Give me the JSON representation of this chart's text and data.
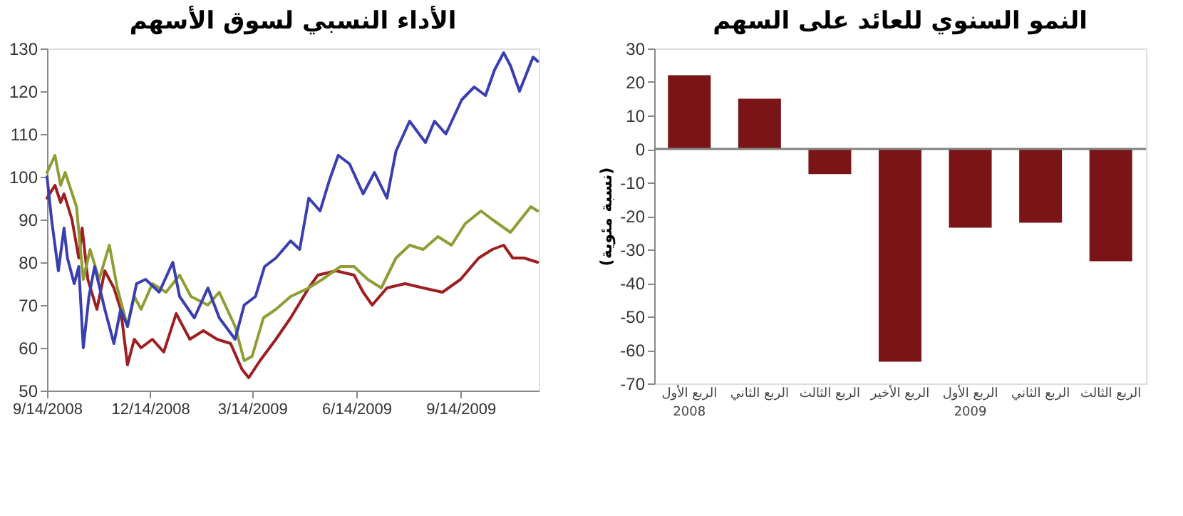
{
  "chart_data": [
    {
      "type": "line",
      "title": "الأداء النسبي لسوق الأسهم",
      "xlim": [
        "2008-09-14",
        "2009-11-22"
      ],
      "xticks": [
        {
          "value": "2008-09-14",
          "label": "9/14/2008"
        },
        {
          "value": "2008-12-14",
          "label": "12/14/2008"
        },
        {
          "value": "2009-03-14",
          "label": "3/14/2009"
        },
        {
          "value": "2009-06-14",
          "label": "6/14/2009"
        },
        {
          "value": "2009-09-14",
          "label": "9/14/2009"
        }
      ],
      "ylim": [
        50,
        130
      ],
      "yticks": [
        50,
        60,
        70,
        80,
        90,
        100,
        110,
        120,
        130
      ],
      "grid": false,
      "legend": false,
      "line_style": "solid",
      "marker": "none",
      "series": [
        {
          "color": "#9e1f22",
          "x": [
            "2008-09-14",
            "2008-09-21",
            "2008-09-26",
            "2008-09-29",
            "2008-10-06",
            "2008-10-12",
            "2008-10-15",
            "2008-10-20",
            "2008-10-28",
            "2008-11-04",
            "2008-11-12",
            "2008-11-18",
            "2008-11-24",
            "2008-11-30",
            "2008-12-06",
            "2008-12-16",
            "2008-12-26",
            "2009-01-06",
            "2009-01-18",
            "2009-01-30",
            "2009-02-11",
            "2009-02-23",
            "2009-03-05",
            "2009-03-11",
            "2009-03-21",
            "2009-04-04",
            "2009-04-17",
            "2009-05-03",
            "2009-05-11",
            "2009-05-27",
            "2009-06-12",
            "2009-06-20",
            "2009-06-28",
            "2009-07-11",
            "2009-07-27",
            "2009-08-12",
            "2009-08-29",
            "2009-09-14",
            "2009-09-30",
            "2009-10-12",
            "2009-10-22",
            "2009-10-30",
            "2009-11-09",
            "2009-11-21"
          ],
          "values": [
            95,
            98,
            94,
            96,
            90,
            81,
            88,
            76,
            69,
            78,
            74,
            69,
            56,
            62,
            60,
            62,
            59,
            68,
            62,
            64,
            62,
            61,
            55,
            53,
            57,
            62,
            67,
            74,
            77,
            78,
            77,
            73,
            70,
            74,
            75,
            74,
            73,
            76,
            81,
            83,
            84,
            81,
            81,
            80
          ]
        },
        {
          "color": "#8f9d35",
          "x": [
            "2008-09-14",
            "2008-09-21",
            "2008-09-26",
            "2008-09-30",
            "2008-10-10",
            "2008-10-16",
            "2008-10-22",
            "2008-10-30",
            "2008-11-08",
            "2008-11-15",
            "2008-11-24",
            "2008-11-30",
            "2008-12-06",
            "2008-12-16",
            "2008-12-28",
            "2009-01-09",
            "2009-01-19",
            "2009-02-03",
            "2009-02-13",
            "2009-02-27",
            "2009-03-07",
            "2009-03-14",
            "2009-03-24",
            "2009-04-04",
            "2009-04-17",
            "2009-05-03",
            "2009-05-15",
            "2009-05-31",
            "2009-06-12",
            "2009-06-24",
            "2009-07-06",
            "2009-07-19",
            "2009-07-31",
            "2009-08-12",
            "2009-08-25",
            "2009-09-06",
            "2009-09-18",
            "2009-10-02",
            "2009-10-12",
            "2009-10-28",
            "2009-11-09",
            "2009-11-15",
            "2009-11-21"
          ],
          "values": [
            101,
            105,
            98,
            101,
            93,
            76,
            83,
            76,
            84,
            74,
            65,
            72,
            69,
            75,
            73,
            77,
            72,
            70,
            73,
            65,
            57,
            58,
            67,
            69,
            72,
            74,
            76,
            79,
            79,
            76,
            74,
            81,
            84,
            83,
            86,
            84,
            89,
            92,
            90,
            87,
            91,
            93,
            92
          ]
        },
        {
          "color": "#3a3fb0",
          "x": [
            "2008-09-14",
            "2008-09-18",
            "2008-09-23",
            "2008-09-24",
            "2008-09-29",
            "2008-10-02",
            "2008-10-08",
            "2008-10-12",
            "2008-10-16",
            "2008-10-21",
            "2008-10-26",
            "2008-11-04",
            "2008-11-12",
            "2008-11-18",
            "2008-11-24",
            "2008-12-02",
            "2008-12-10",
            "2008-12-22",
            "2009-01-03",
            "2009-01-09",
            "2009-01-22",
            "2009-02-03",
            "2009-02-13",
            "2009-02-27",
            "2009-03-07",
            "2009-03-17",
            "2009-03-25",
            "2009-04-04",
            "2009-04-17",
            "2009-04-25",
            "2009-05-03",
            "2009-05-13",
            "2009-05-21",
            "2009-05-29",
            "2009-06-08",
            "2009-06-20",
            "2009-06-30",
            "2009-07-11",
            "2009-07-19",
            "2009-07-31",
            "2009-08-14",
            "2009-08-22",
            "2009-09-01",
            "2009-09-15",
            "2009-09-26",
            "2009-10-06",
            "2009-10-14",
            "2009-10-22",
            "2009-10-28",
            "2009-11-05",
            "2009-11-11",
            "2009-11-17",
            "2009-11-21"
          ],
          "values": [
            100,
            90,
            80,
            78,
            88,
            81,
            75,
            79,
            60,
            72,
            79,
            69,
            61,
            69,
            65,
            75,
            76,
            73,
            80,
            72,
            67,
            74,
            67,
            62,
            70,
            72,
            79,
            81,
            85,
            83,
            95,
            92,
            99,
            105,
            103,
            96,
            101,
            95,
            106,
            113,
            108,
            113,
            110,
            118,
            121,
            119,
            125,
            129,
            126,
            120,
            124,
            128,
            127
          ]
        }
      ]
    },
    {
      "type": "bar",
      "title": "النمو السنوي للعائد على السهم",
      "ylabel": "(نسبة مئوية)",
      "categories": [
        "الربع الأول\n2008",
        "الربع الثاني",
        "الربع الثالث",
        "الربع الأخير",
        "الربع الأول\n2009",
        "الربع الثاني",
        "الربع الثالث"
      ],
      "values": [
        22,
        15,
        -7.5,
        -63.5,
        -23.5,
        -22,
        -33.5
      ],
      "color": "#7b1416",
      "ylim": [
        -70,
        30
      ],
      "yticks": [
        -70,
        -60,
        -50,
        -40,
        -30,
        -20,
        -10,
        0,
        10,
        20,
        30
      ],
      "grid": false,
      "legend": false,
      "ref_lines": [
        {
          "axis": "y",
          "value": 0,
          "color": "#808080"
        }
      ]
    }
  ]
}
